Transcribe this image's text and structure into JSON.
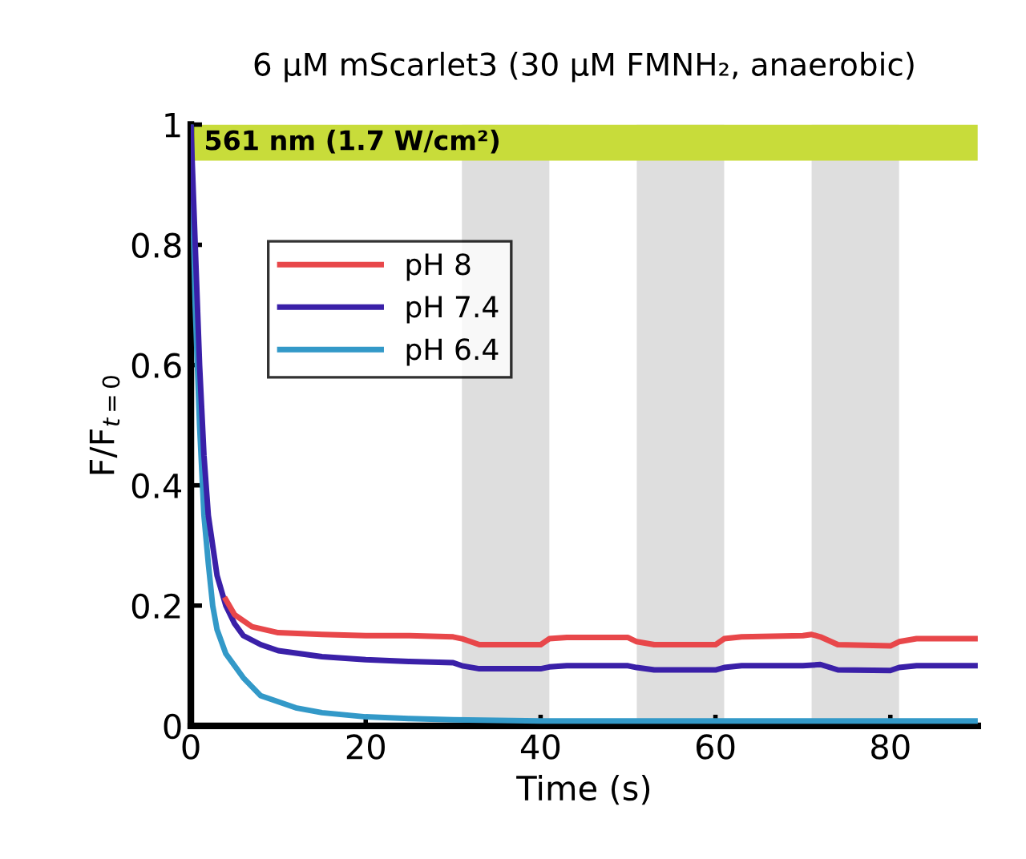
{
  "chart_data": {
    "type": "line",
    "title": "6 µM mScarlet3 (30 µM FMNH₂, anaerobic)",
    "xlabel": "Time (s)",
    "ylabel": "F/F$_{t=0}$",
    "xlim": [
      0,
      90
    ],
    "ylim": [
      0,
      1
    ],
    "xticks": [
      0,
      20,
      40,
      60,
      80
    ],
    "yticks": [
      0,
      0.2,
      0.4,
      0.6,
      0.8,
      1
    ],
    "grid": false,
    "legend": "top left",
    "series": [
      {
        "name": "pH 8",
        "color": "#e8474a",
        "x": [
          4,
          5,
          7,
          10,
          15,
          20,
          25,
          30,
          31,
          33,
          40,
          41,
          43,
          50,
          51,
          53,
          60,
          61,
          63,
          70,
          71,
          72,
          74,
          80,
          81,
          83,
          90
        ],
        "values": [
          0.21,
          0.185,
          0.165,
          0.155,
          0.152,
          0.15,
          0.15,
          0.148,
          0.145,
          0.135,
          0.135,
          0.145,
          0.147,
          0.147,
          0.14,
          0.135,
          0.135,
          0.145,
          0.148,
          0.15,
          0.152,
          0.148,
          0.135,
          0.133,
          0.14,
          0.145,
          0.145
        ]
      },
      {
        "name": "pH 7.4",
        "color": "#3a20a8",
        "x": [
          0,
          0.5,
          1,
          1.5,
          2,
          3,
          4,
          5,
          6,
          8,
          10,
          15,
          20,
          25,
          30,
          31,
          33,
          40,
          41,
          43,
          50,
          51,
          53,
          60,
          61,
          63,
          70,
          72,
          74,
          80,
          81,
          83,
          90
        ],
        "values": [
          1,
          0.8,
          0.6,
          0.45,
          0.35,
          0.25,
          0.2,
          0.17,
          0.15,
          0.135,
          0.125,
          0.115,
          0.11,
          0.107,
          0.105,
          0.1,
          0.095,
          0.095,
          0.098,
          0.1,
          0.1,
          0.097,
          0.093,
          0.093,
          0.097,
          0.1,
          0.1,
          0.102,
          0.093,
          0.092,
          0.097,
          0.1,
          0.1
        ]
      },
      {
        "name": "pH 6.4",
        "color": "#3399c8",
        "x": [
          0,
          0.5,
          1,
          1.5,
          2,
          2.5,
          3,
          4,
          5,
          6,
          8,
          10,
          12,
          15,
          20,
          25,
          30,
          40,
          50,
          60,
          70,
          80,
          90
        ],
        "values": [
          1,
          0.7,
          0.5,
          0.35,
          0.27,
          0.2,
          0.16,
          0.12,
          0.1,
          0.08,
          0.05,
          0.04,
          0.03,
          0.022,
          0.015,
          0.012,
          0.01,
          0.008,
          0.008,
          0.008,
          0.008,
          0.008,
          0.008
        ]
      }
    ],
    "bands": [
      {
        "axis": "y",
        "from": 0.94,
        "to": 1,
        "label": "561 nm (1.7 W/cm²)",
        "color": "#c8dc3a"
      },
      {
        "axis": "x",
        "from": 31,
        "to": 41,
        "color": "#dedede"
      },
      {
        "axis": "x",
        "from": 51,
        "to": 61,
        "color": "#dedede"
      },
      {
        "axis": "x",
        "from": 71,
        "to": 81,
        "color": "#dedede"
      }
    ]
  }
}
